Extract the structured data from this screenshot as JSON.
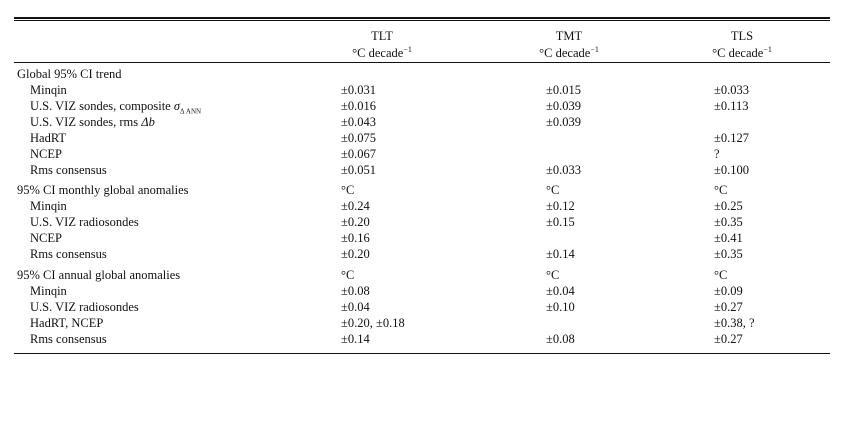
{
  "columns": [
    {
      "name": "TLT",
      "unit": "°C decade",
      "exp": "−1"
    },
    {
      "name": "TMT",
      "unit": "°C decade",
      "exp": "−1"
    },
    {
      "name": "TLS",
      "unit": "°C decade",
      "exp": "−1"
    }
  ],
  "sections": [
    {
      "title": "Global 95% CI trend",
      "units": [
        "",
        "",
        ""
      ],
      "rows": [
        {
          "label": "Minqin",
          "values": [
            "±0.031",
            "±0.015",
            "±0.033"
          ]
        },
        {
          "label": "U.S. VIZ sondes, composite ",
          "math": "σ",
          "math_sub": "Δ ANN",
          "values": [
            "±0.016",
            "±0.039",
            "±0.113"
          ]
        },
        {
          "label": "U.S. VIZ sondes, rms ",
          "math": "Δb",
          "math_sub": "",
          "values": [
            "±0.043",
            "±0.039",
            ""
          ]
        },
        {
          "label": "HadRT",
          "values": [
            "±0.075",
            "",
            "±0.127"
          ]
        },
        {
          "label": "NCEP",
          "values": [
            "±0.067",
            "",
            "?"
          ]
        },
        {
          "label": "Rms consensus",
          "values": [
            "±0.051",
            "±0.033",
            "±0.100"
          ]
        }
      ]
    },
    {
      "title": "95% CI monthly global anomalies",
      "units": [
        "°C",
        "°C",
        "°C"
      ],
      "rows": [
        {
          "label": "Minqin",
          "values": [
            "±0.24",
            "±0.12",
            "±0.25"
          ]
        },
        {
          "label": "U.S. VIZ radiosondes",
          "values": [
            "±0.20",
            "±0.15",
            "±0.35"
          ]
        },
        {
          "label": "NCEP",
          "values": [
            "±0.16",
            "",
            "±0.41"
          ]
        },
        {
          "label": "Rms consensus",
          "values": [
            "±0.20",
            "±0.14",
            "±0.35"
          ]
        }
      ]
    },
    {
      "title": "95% CI annual global anomalies",
      "units": [
        "°C",
        "°C",
        "°C"
      ],
      "rows": [
        {
          "label": "Minqin",
          "values": [
            "±0.08",
            "±0.04",
            "±0.09"
          ]
        },
        {
          "label": "U.S. VIZ radiosondes",
          "values": [
            "±0.04",
            "±0.10",
            "±0.27"
          ]
        },
        {
          "label": "HadRT, NCEP",
          "values": [
            "±0.20, ±0.18",
            "",
            "±0.38, ?"
          ]
        },
        {
          "label": "Rms consensus",
          "values": [
            "±0.14",
            "±0.08",
            "±0.27"
          ]
        }
      ]
    }
  ]
}
